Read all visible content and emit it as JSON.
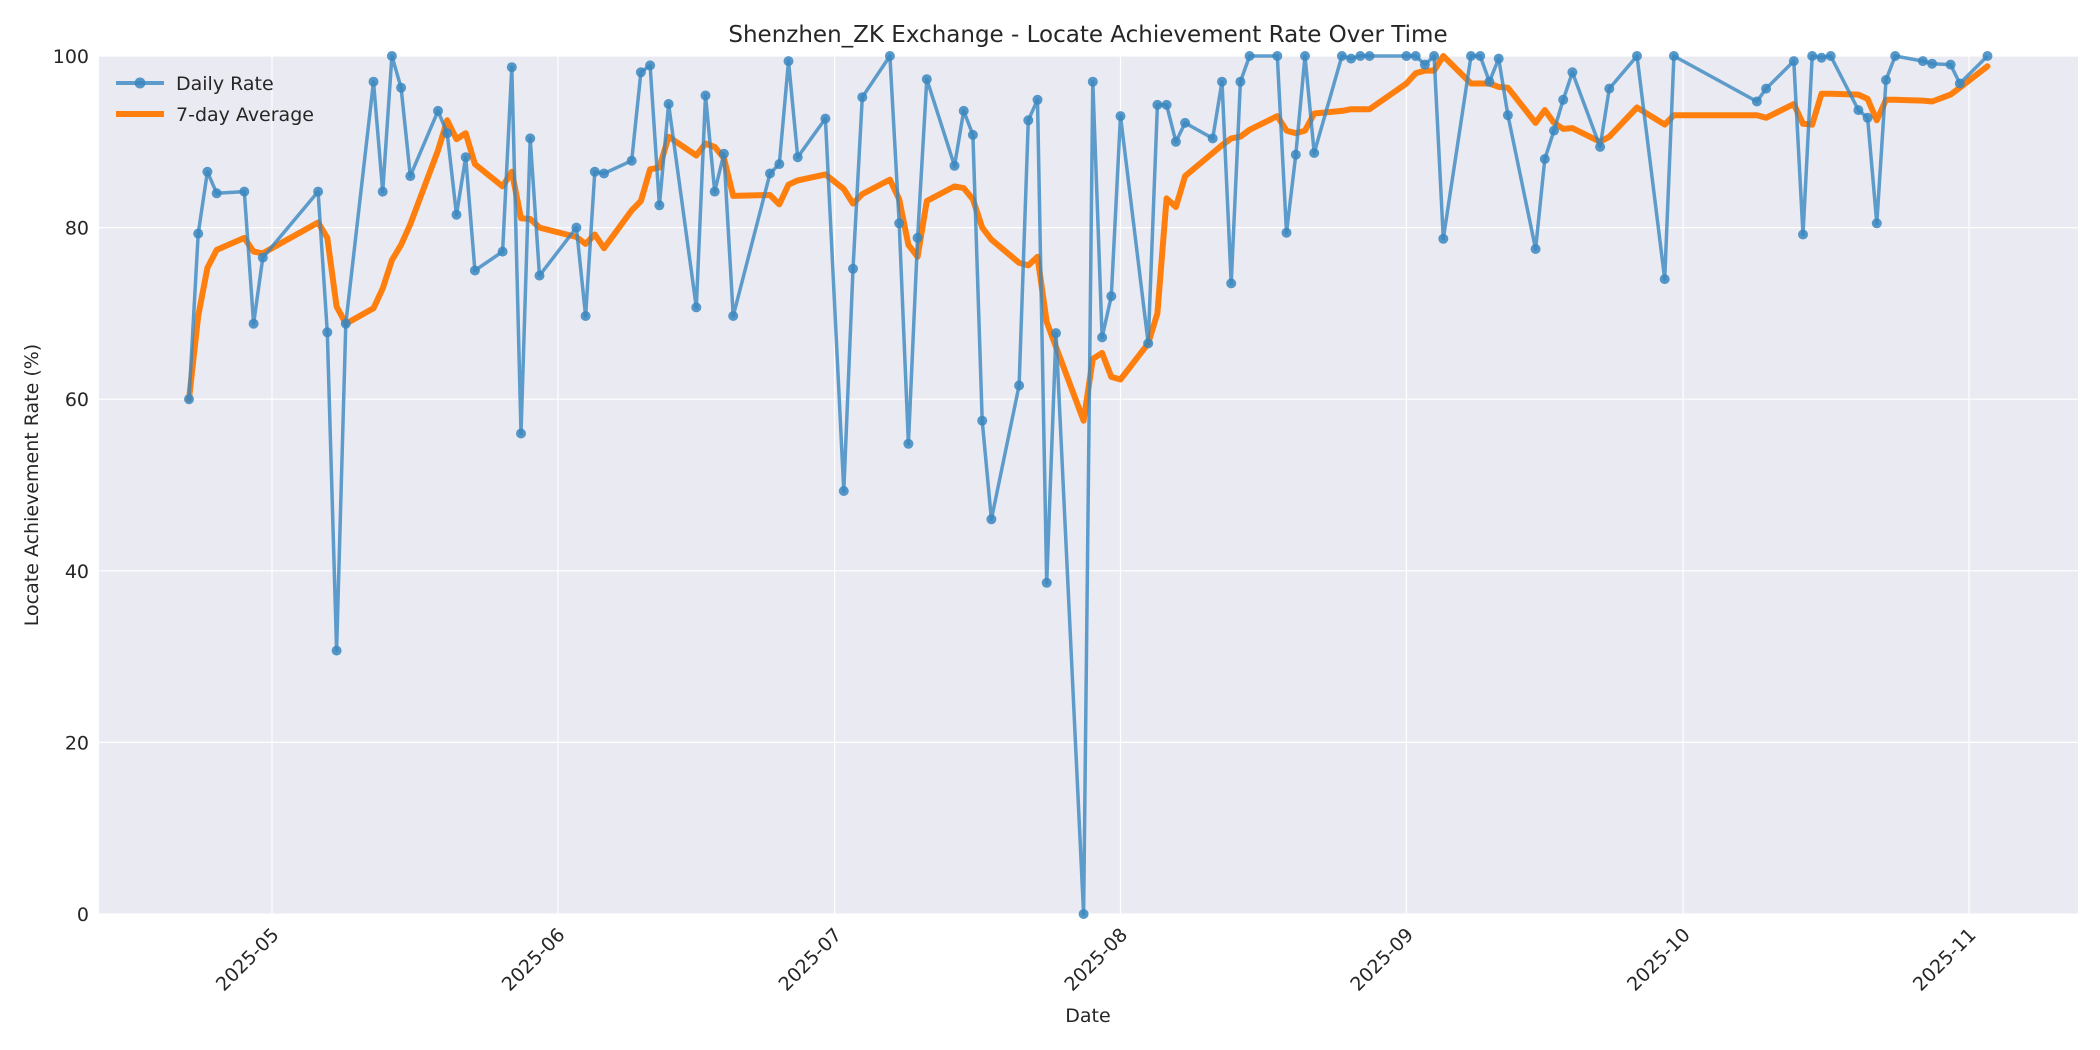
{
  "chart_data": {
    "type": "line",
    "title": "Shenzhen_ZK Exchange - Locate Achievement Rate Over Time",
    "xlabel": "Date",
    "ylabel": "Locate Achievement Rate (%)",
    "ylim": [
      0,
      100
    ],
    "yticks": [
      0,
      20,
      40,
      60,
      80,
      100
    ],
    "xticks": [
      "2025-05",
      "2025-06",
      "2025-07",
      "2025-08",
      "2025-09",
      "2025-10",
      "2025-11"
    ],
    "xlim": [
      "2025-04-19",
      "2025-11-07"
    ],
    "grid": true,
    "legend_position": "upper left",
    "colors": {
      "daily": "#3a87c0",
      "avg": "#ff7f0e",
      "background": "#eaeaf2",
      "grid": "#ffffff"
    },
    "series": [
      {
        "name": "Daily Rate",
        "style": "line-with-markers",
        "points": [
          [
            "2025-04-22",
            60.0
          ],
          [
            "2025-04-23",
            79.3
          ],
          [
            "2025-04-24",
            86.5
          ],
          [
            "2025-04-25",
            84.0
          ],
          [
            "2025-04-28",
            84.2
          ],
          [
            "2025-04-29",
            68.8
          ],
          [
            "2025-04-30",
            76.5
          ],
          [
            "2025-05-06",
            84.2
          ],
          [
            "2025-05-07",
            67.8
          ],
          [
            "2025-05-08",
            30.7
          ],
          [
            "2025-05-09",
            68.8
          ],
          [
            "2025-05-12",
            97.0
          ],
          [
            "2025-05-13",
            84.2
          ],
          [
            "2025-05-14",
            100.0
          ],
          [
            "2025-05-15",
            96.3
          ],
          [
            "2025-05-16",
            86.0
          ],
          [
            "2025-05-19",
            93.6
          ],
          [
            "2025-05-20",
            91.0
          ],
          [
            "2025-05-21",
            81.5
          ],
          [
            "2025-05-22",
            88.2
          ],
          [
            "2025-05-23",
            75.0
          ],
          [
            "2025-05-26",
            77.2
          ],
          [
            "2025-05-27",
            98.7
          ],
          [
            "2025-05-28",
            56.0
          ],
          [
            "2025-05-29",
            90.4
          ],
          [
            "2025-05-30",
            74.4
          ],
          [
            "2025-06-03",
            80.0
          ],
          [
            "2025-06-04",
            69.7
          ],
          [
            "2025-06-05",
            86.5
          ],
          [
            "2025-06-06",
            86.3
          ],
          [
            "2025-06-09",
            87.8
          ],
          [
            "2025-06-10",
            98.1
          ],
          [
            "2025-06-11",
            98.9
          ],
          [
            "2025-06-12",
            82.6
          ],
          [
            "2025-06-13",
            94.4
          ],
          [
            "2025-06-16",
            70.7
          ],
          [
            "2025-06-17",
            95.4
          ],
          [
            "2025-06-18",
            84.2
          ],
          [
            "2025-06-19",
            88.6
          ],
          [
            "2025-06-20",
            69.7
          ],
          [
            "2025-06-24",
            86.3
          ],
          [
            "2025-06-25",
            87.4
          ],
          [
            "2025-06-26",
            99.4
          ],
          [
            "2025-06-27",
            88.2
          ],
          [
            "2025-06-30",
            92.7
          ],
          [
            "2025-07-02",
            49.3
          ],
          [
            "2025-07-03",
            75.2
          ],
          [
            "2025-07-04",
            95.2
          ],
          [
            "2025-07-07",
            100.0
          ],
          [
            "2025-07-08",
            80.5
          ],
          [
            "2025-07-09",
            54.8
          ],
          [
            "2025-07-10",
            78.8
          ],
          [
            "2025-07-11",
            97.3
          ],
          [
            "2025-07-14",
            87.2
          ],
          [
            "2025-07-15",
            93.6
          ],
          [
            "2025-07-16",
            90.8
          ],
          [
            "2025-07-17",
            57.5
          ],
          [
            "2025-07-18",
            46.0
          ],
          [
            "2025-07-21",
            61.6
          ],
          [
            "2025-07-22",
            92.5
          ],
          [
            "2025-07-23",
            94.9
          ],
          [
            "2025-07-24",
            38.6
          ],
          [
            "2025-07-25",
            67.7
          ],
          [
            "2025-07-28",
            0.0
          ],
          [
            "2025-07-29",
            97.0
          ],
          [
            "2025-07-30",
            67.2
          ],
          [
            "2025-07-31",
            72.0
          ],
          [
            "2025-08-01",
            93.0
          ],
          [
            "2025-08-04",
            66.5
          ],
          [
            "2025-08-05",
            94.3
          ],
          [
            "2025-08-06",
            94.3
          ],
          [
            "2025-08-07",
            90.0
          ],
          [
            "2025-08-08",
            92.2
          ],
          [
            "2025-08-11",
            90.4
          ],
          [
            "2025-08-12",
            97.0
          ],
          [
            "2025-08-13",
            73.5
          ],
          [
            "2025-08-14",
            97.0
          ],
          [
            "2025-08-15",
            100.0
          ],
          [
            "2025-08-18",
            100.0
          ],
          [
            "2025-08-19",
            79.4
          ],
          [
            "2025-08-20",
            88.5
          ],
          [
            "2025-08-21",
            100.0
          ],
          [
            "2025-08-22",
            88.7
          ],
          [
            "2025-08-25",
            100.0
          ],
          [
            "2025-08-26",
            99.7
          ],
          [
            "2025-08-27",
            100.0
          ],
          [
            "2025-08-28",
            100.0
          ],
          [
            "2025-09-01",
            100.0
          ],
          [
            "2025-09-02",
            100.0
          ],
          [
            "2025-09-03",
            99.0
          ],
          [
            "2025-09-04",
            100.0
          ],
          [
            "2025-09-05",
            78.7
          ],
          [
            "2025-09-08",
            100.0
          ],
          [
            "2025-09-09",
            100.0
          ],
          [
            "2025-09-10",
            97.0
          ],
          [
            "2025-09-11",
            99.7
          ],
          [
            "2025-09-12",
            93.1
          ],
          [
            "2025-09-15",
            77.5
          ],
          [
            "2025-09-16",
            88.0
          ],
          [
            "2025-09-17",
            91.3
          ],
          [
            "2025-09-18",
            94.9
          ],
          [
            "2025-09-19",
            98.1
          ],
          [
            "2025-09-22",
            89.4
          ],
          [
            "2025-09-23",
            96.2
          ],
          [
            "2025-09-26",
            100.0
          ],
          [
            "2025-09-29",
            74.0
          ],
          [
            "2025-09-30",
            100.0
          ],
          [
            "2025-10-09",
            94.7
          ],
          [
            "2025-10-10",
            96.2
          ],
          [
            "2025-10-13",
            99.4
          ],
          [
            "2025-10-14",
            79.2
          ],
          [
            "2025-10-15",
            100.0
          ],
          [
            "2025-10-16",
            99.8
          ],
          [
            "2025-10-17",
            100.0
          ],
          [
            "2025-10-20",
            93.7
          ],
          [
            "2025-10-21",
            92.8
          ],
          [
            "2025-10-22",
            80.5
          ],
          [
            "2025-10-23",
            97.2
          ],
          [
            "2025-10-24",
            100.0
          ],
          [
            "2025-10-27",
            99.4
          ],
          [
            "2025-10-28",
            99.1
          ],
          [
            "2025-10-30",
            99.0
          ],
          [
            "2025-10-31",
            96.8
          ],
          [
            "2025-11-03",
            100.0
          ]
        ]
      },
      {
        "name": "7-day Average",
        "style": "thick-line",
        "points": [
          [
            "2025-04-22",
            60.0
          ],
          [
            "2025-04-23",
            69.7
          ],
          [
            "2025-04-24",
            75.3
          ],
          [
            "2025-04-25",
            77.4
          ],
          [
            "2025-04-28",
            78.8
          ],
          [
            "2025-04-29",
            77.2
          ],
          [
            "2025-04-30",
            77.0
          ],
          [
            "2025-05-06",
            80.6
          ],
          [
            "2025-05-07",
            78.8
          ],
          [
            "2025-05-08",
            70.8
          ],
          [
            "2025-05-09",
            68.8
          ],
          [
            "2025-05-12",
            70.6
          ],
          [
            "2025-05-13",
            72.9
          ],
          [
            "2025-05-14",
            76.2
          ],
          [
            "2025-05-15",
            78.0
          ],
          [
            "2025-05-16",
            80.4
          ],
          [
            "2025-05-19",
            89.0
          ],
          [
            "2025-05-20",
            92.5
          ],
          [
            "2025-05-21",
            90.3
          ],
          [
            "2025-05-22",
            91.0
          ],
          [
            "2025-05-23",
            87.4
          ],
          [
            "2025-05-26",
            84.8
          ],
          [
            "2025-05-27",
            86.5
          ],
          [
            "2025-05-28",
            81.1
          ],
          [
            "2025-05-29",
            81.0
          ],
          [
            "2025-05-30",
            80.0
          ],
          [
            "2025-06-03",
            78.9
          ],
          [
            "2025-06-04",
            78.1
          ],
          [
            "2025-06-05",
            79.2
          ],
          [
            "2025-06-06",
            77.6
          ],
          [
            "2025-06-09",
            82.0
          ],
          [
            "2025-06-10",
            83.1
          ],
          [
            "2025-06-11",
            86.8
          ],
          [
            "2025-06-12",
            87.0
          ],
          [
            "2025-06-13",
            90.6
          ],
          [
            "2025-06-16",
            88.4
          ],
          [
            "2025-06-17",
            89.8
          ],
          [
            "2025-06-18",
            89.4
          ],
          [
            "2025-06-19",
            88.1
          ],
          [
            "2025-06-20",
            83.7
          ],
          [
            "2025-06-24",
            83.8
          ],
          [
            "2025-06-25",
            82.7
          ],
          [
            "2025-06-26",
            85.0
          ],
          [
            "2025-06-27",
            85.5
          ],
          [
            "2025-06-30",
            86.2
          ],
          [
            "2025-07-02",
            84.5
          ],
          [
            "2025-07-03",
            82.8
          ],
          [
            "2025-07-04",
            83.9
          ],
          [
            "2025-07-07",
            85.6
          ],
          [
            "2025-07-08",
            83.3
          ],
          [
            "2025-07-09",
            78.0
          ],
          [
            "2025-07-10",
            76.6
          ],
          [
            "2025-07-11",
            83.1
          ],
          [
            "2025-07-14",
            84.8
          ],
          [
            "2025-07-15",
            84.6
          ],
          [
            "2025-07-16",
            83.3
          ],
          [
            "2025-07-17",
            80.0
          ],
          [
            "2025-07-18",
            78.6
          ],
          [
            "2025-07-21",
            75.9
          ],
          [
            "2025-07-22",
            75.6
          ],
          [
            "2025-07-23",
            76.6
          ],
          [
            "2025-07-24",
            69.0
          ],
          [
            "2025-07-25",
            66.1
          ],
          [
            "2025-07-28",
            57.5
          ],
          [
            "2025-07-29",
            64.7
          ],
          [
            "2025-07-30",
            65.4
          ],
          [
            "2025-07-31",
            62.6
          ],
          [
            "2025-08-01",
            62.3
          ],
          [
            "2025-08-04",
            66.5
          ],
          [
            "2025-08-05",
            70.0
          ],
          [
            "2025-08-06",
            83.4
          ],
          [
            "2025-08-07",
            82.4
          ],
          [
            "2025-08-08",
            86.0
          ],
          [
            "2025-08-11",
            88.7
          ],
          [
            "2025-08-12",
            89.6
          ],
          [
            "2025-08-13",
            90.4
          ],
          [
            "2025-08-14",
            90.6
          ],
          [
            "2025-08-15",
            91.4
          ],
          [
            "2025-08-18",
            93.0
          ],
          [
            "2025-08-19",
            91.3
          ],
          [
            "2025-08-20",
            91.0
          ],
          [
            "2025-08-21",
            91.3
          ],
          [
            "2025-08-22",
            93.3
          ],
          [
            "2025-08-25",
            93.6
          ],
          [
            "2025-08-26",
            93.8
          ],
          [
            "2025-08-27",
            93.8
          ],
          [
            "2025-08-28",
            93.8
          ],
          [
            "2025-09-01",
            96.8
          ],
          [
            "2025-09-02",
            98.0
          ],
          [
            "2025-09-03",
            98.3
          ],
          [
            "2025-09-04",
            98.3
          ],
          [
            "2025-09-05",
            100.0
          ],
          [
            "2025-09-08",
            96.8
          ],
          [
            "2025-09-09",
            96.8
          ],
          [
            "2025-09-10",
            96.8
          ],
          [
            "2025-09-11",
            96.4
          ],
          [
            "2025-09-12",
            96.3
          ],
          [
            "2025-09-15",
            92.2
          ],
          [
            "2025-09-16",
            93.7
          ],
          [
            "2025-09-17",
            92.2
          ],
          [
            "2025-09-18",
            91.5
          ],
          [
            "2025-09-19",
            91.6
          ],
          [
            "2025-09-22",
            90.0
          ],
          [
            "2025-09-23",
            90.6
          ],
          [
            "2025-09-26",
            94.0
          ],
          [
            "2025-09-29",
            92.0
          ],
          [
            "2025-09-30",
            93.1
          ],
          [
            "2025-10-09",
            93.1
          ],
          [
            "2025-10-10",
            92.8
          ],
          [
            "2025-10-13",
            94.4
          ],
          [
            "2025-10-14",
            92.1
          ],
          [
            "2025-10-15",
            92.0
          ],
          [
            "2025-10-16",
            95.6
          ],
          [
            "2025-10-17",
            95.6
          ],
          [
            "2025-10-20",
            95.5
          ],
          [
            "2025-10-21",
            95.0
          ],
          [
            "2025-10-22",
            92.5
          ],
          [
            "2025-10-23",
            94.9
          ],
          [
            "2025-10-24",
            94.9
          ],
          [
            "2025-10-27",
            94.8
          ],
          [
            "2025-10-28",
            94.7
          ],
          [
            "2025-10-30",
            95.5
          ],
          [
            "2025-10-31",
            96.3
          ],
          [
            "2025-11-03",
            98.8
          ]
        ]
      }
    ]
  }
}
